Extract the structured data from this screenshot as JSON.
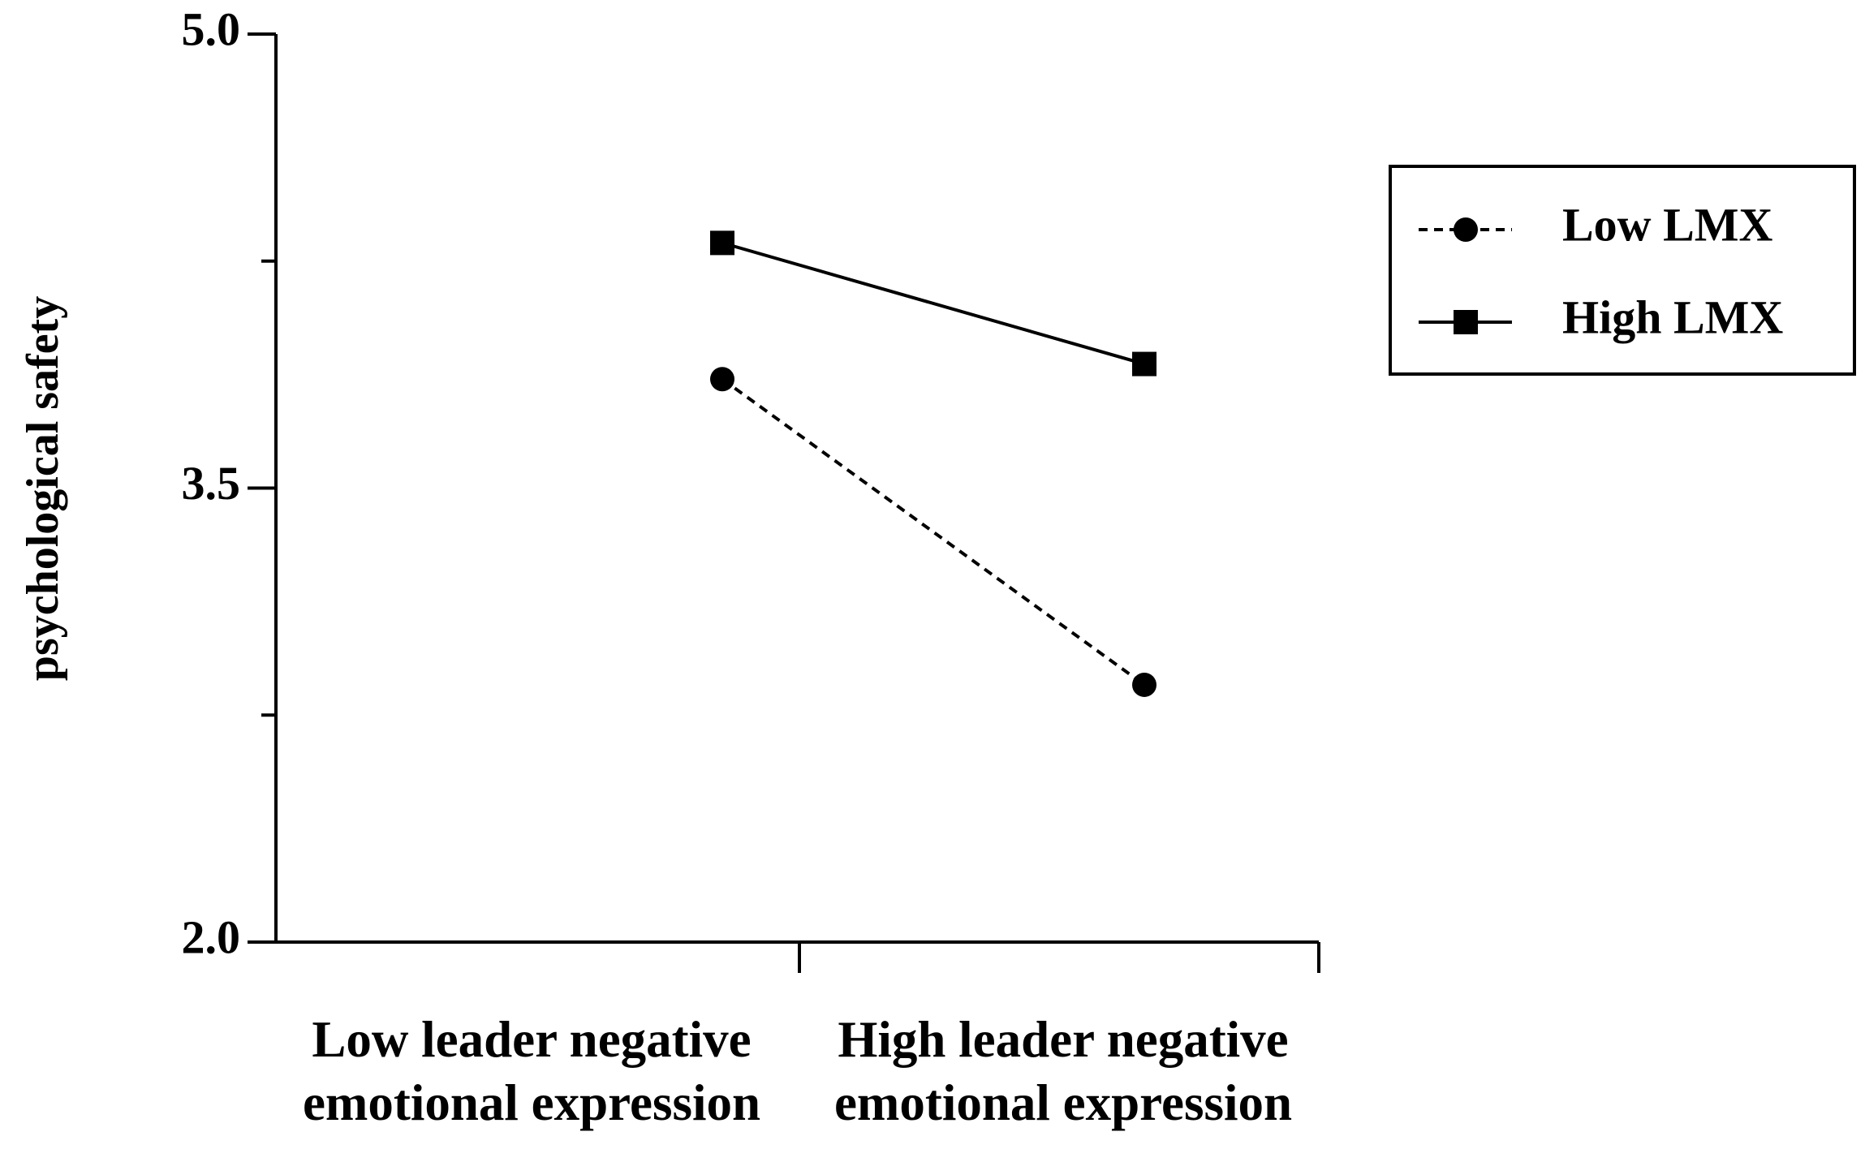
{
  "chart_data": {
    "type": "line",
    "title": "",
    "ylabel": "psychological safety",
    "xlabel": "",
    "categories": [
      [
        "Low leader negative",
        "emotional expression"
      ],
      [
        "High leader negative",
        "emotional expression"
      ]
    ],
    "ylim": [
      2.0,
      5.0
    ],
    "yticks": [
      2.0,
      3.5,
      5.0
    ],
    "yticks_minor": [
      2.75,
      4.25
    ],
    "ytick_labels": [
      "2.0",
      "3.5",
      "5.0"
    ],
    "grid": false,
    "legend_position": "top-right",
    "series": [
      {
        "name": "Low LMX",
        "values": [
          3.86,
          2.85
        ],
        "marker": "circle",
        "line_style": "dashed",
        "color": "#000000"
      },
      {
        "name": "High LMX",
        "values": [
          4.31,
          3.91
        ],
        "marker": "square",
        "line_style": "solid",
        "color": "#000000"
      }
    ]
  }
}
